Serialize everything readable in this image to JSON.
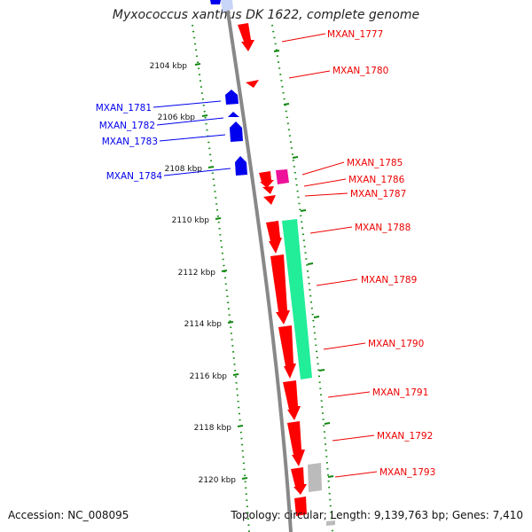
{
  "title": "Myxococcus xanthus DK 1622, complete genome",
  "footer": {
    "accession": "Accession: NC_008095",
    "summary": "Topology: circular; Length: 9,139,763 bp; Genes: 7,410"
  },
  "colors": {
    "forward_gene": "#ff0000",
    "reverse_gene": "#0000ff",
    "magenta_feature": "#ee1199",
    "green_feature": "#22ee99",
    "gray_feature": "#bbbbbb",
    "backbone": "#888888",
    "scale_ticks": "#118811"
  },
  "scale_labels": [
    "2104 kbp",
    "2106 kbp",
    "2108 kbp",
    "2110 kbp",
    "2112 kbp",
    "2114 kbp",
    "2116 kbp",
    "2118 kbp",
    "2120 kbp"
  ],
  "genes": {
    "reverse": [
      "MXAN_1781",
      "MXAN_1782",
      "MXAN_1783",
      "MXAN_1784"
    ],
    "forward": [
      "MXAN_1777",
      "MXAN_1780",
      "MXAN_1785",
      "MXAN_1786",
      "MXAN_1787",
      "MXAN_1788",
      "MXAN_1789",
      "MXAN_1790",
      "MXAN_1791",
      "MXAN_1792",
      "MXAN_1793"
    ]
  }
}
